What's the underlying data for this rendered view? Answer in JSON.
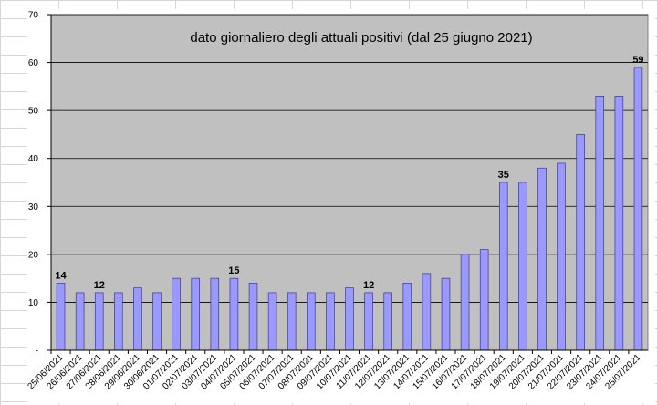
{
  "chart_data": {
    "type": "bar",
    "title": "dato giornaliero degli attuali positivi (dal 25 giugno 2021)",
    "xlabel": "",
    "ylabel": "",
    "ylim": [
      0,
      70
    ],
    "yticks": [
      "-",
      "10",
      "20",
      "30",
      "40",
      "50",
      "60",
      "70"
    ],
    "grid": true,
    "legend": "none",
    "categories": [
      "25/06/2021",
      "26/06/2021",
      "27/06/2021",
      "28/06/2021",
      "29/06/2021",
      "30/06/2021",
      "01/07/2021",
      "02/07/2021",
      "03/07/2021",
      "04/07/2021",
      "05/07/2021",
      "06/07/2021",
      "07/07/2021",
      "08/07/2021",
      "09/07/2021",
      "10/07/2021",
      "11/07/2021",
      "12/07/2021",
      "13/07/2021",
      "14/07/2021",
      "15/07/2021",
      "16/07/2021",
      "17/07/2021",
      "18/07/2021",
      "19/07/2021",
      "20/07/2021",
      "21/07/2021",
      "22/07/2021",
      "23/07/2021",
      "24/07/2021",
      "25/07/2021"
    ],
    "values": [
      14,
      12,
      12,
      12,
      13,
      12,
      15,
      15,
      15,
      15,
      14,
      12,
      12,
      12,
      12,
      13,
      12,
      12,
      14,
      16,
      15,
      20,
      21,
      35,
      35,
      38,
      39,
      45,
      53,
      53,
      59
    ],
    "data_labels": [
      {
        "index": 0,
        "text": "14"
      },
      {
        "index": 2,
        "text": "12"
      },
      {
        "index": 9,
        "text": "15"
      },
      {
        "index": 16,
        "text": "12"
      },
      {
        "index": 23,
        "text": "35"
      },
      {
        "index": 30,
        "text": "59"
      }
    ],
    "colors": {
      "plot_background": "#c0c0c0",
      "bar_fill": "#9999ff",
      "bar_stroke": "#3a3a8c",
      "gridline": "#000000"
    }
  }
}
